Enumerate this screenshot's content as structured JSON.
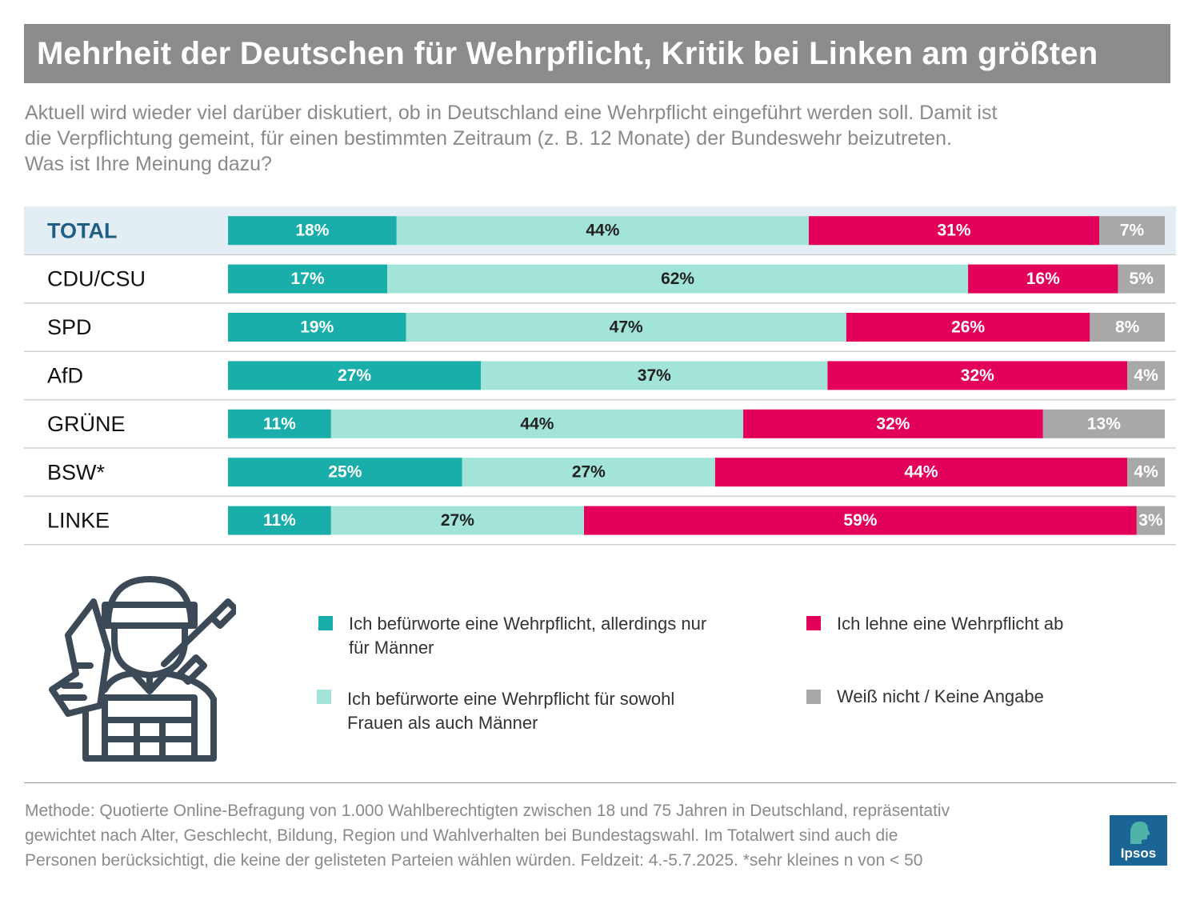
{
  "title": "Mehrheit der Deutschen für Wehrpflicht, Kritik bei Linken am größten",
  "question": {
    "lines": [
      "Aktuell wird wieder viel darüber diskutiert, ob in Deutschland eine Wehrpflicht eingeführt werden soll. Damit ist",
      "die Verpflichtung gemeint, für einen bestimmten Zeitraum (z. B. 12 Monate) der Bundeswehr beizutreten.",
      "Was ist Ihre Meinung dazu?"
    ]
  },
  "chart_data": {
    "type": "bar",
    "orientation": "horizontal-stacked-100",
    "categories": [
      "TOTAL",
      "CDU/CSU",
      "SPD",
      "AfD",
      "GRÜNE",
      "BSW*",
      "LINKE"
    ],
    "series": [
      {
        "name": "Ich befürworte eine Wehrpflicht, allerdings nur für Männer",
        "color": "#1aaeaa",
        "label_color": "#ffffff",
        "values": [
          18,
          17,
          19,
          27,
          11,
          25,
          11
        ]
      },
      {
        "name": "Ich befürworte eine Wehrpflicht für sowohl Frauen als auch Männer",
        "color": "#a3e4d9",
        "label_color": "#222222",
        "values": [
          44,
          62,
          47,
          37,
          44,
          27,
          27
        ]
      },
      {
        "name": "Ich lehne eine Wehrpflicht ab",
        "color": "#e2005a",
        "label_color": "#ffffff",
        "values": [
          31,
          16,
          26,
          32,
          32,
          44,
          59
        ]
      },
      {
        "name": "Weiß nicht / Keine Angabe",
        "color": "#a8a8a8",
        "label_color": "#ffffff",
        "values": [
          7,
          5,
          8,
          4,
          13,
          4,
          3
        ]
      }
    ],
    "value_suffix": "%",
    "highlight_category": "TOTAL",
    "highlight_color": "#e3eef4",
    "highlight_label_color": "#1f5f85"
  },
  "legend": [
    {
      "lines": [
        "Ich befürworte eine Wehrpflicht, allerdings nur",
        "für Männer"
      ],
      "color": "#1aaeaa"
    },
    {
      "lines": [
        "Ich befürworte eine Wehrpflicht für sowohl",
        "Frauen als auch Männer"
      ],
      "color": "#a3e4d9"
    },
    {
      "lines": [
        "Ich lehne eine Wehrpflicht ab"
      ],
      "color": "#e2005a"
    },
    {
      "lines": [
        "Weiß nicht / Keine Angabe"
      ],
      "color": "#a8a8a8"
    }
  ],
  "icon": {
    "name": "saluting-soldier-icon",
    "color": "#3c4a57"
  },
  "method": {
    "lines": [
      "Methode: Quotierte Online-Befragung von 1.000 Wahlberechtigten zwischen 18 und 75 Jahren in Deutschland, repräsentativ",
      "gewichtet nach Alter, Geschlecht, Bildung, Region und Wahlverhalten bei Bundestagswahl. Im Totalwert sind auch die",
      "Personen berücksichtigt, die keine der gelisteten Parteien wählen würden. Feldzeit: 4.-5.7.2025. *sehr kleines n von < 50"
    ]
  },
  "logo": {
    "text": "Ipsos",
    "color": "#1a6596"
  }
}
